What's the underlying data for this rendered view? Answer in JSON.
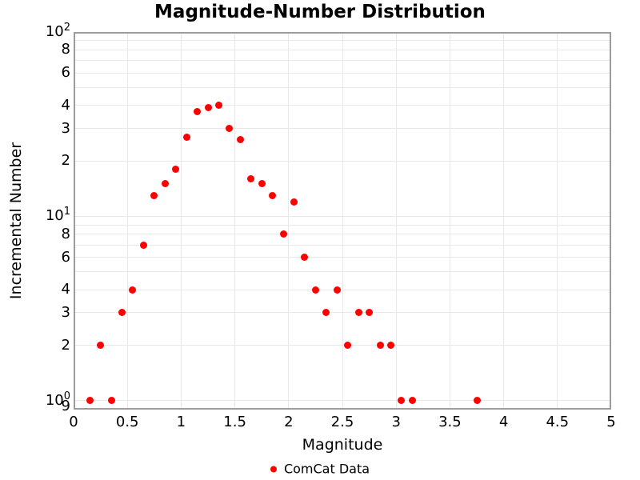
{
  "chart_data": {
    "type": "scatter",
    "title": "Magnitude-Number Distribution",
    "xlabel": "Magnitude",
    "ylabel": "Incremental Number",
    "xlim": [
      0,
      5
    ],
    "ylim": [
      0.9,
      100
    ],
    "yscale": "log",
    "grid": true,
    "legend_position": "bottom-center",
    "marker": {
      "color": "#ff0000",
      "size": 9,
      "shape": "circle"
    },
    "series": [
      {
        "name": "ComCat Data",
        "x": [
          0.15,
          0.25,
          0.35,
          0.45,
          0.55,
          0.65,
          0.75,
          0.85,
          0.95,
          1.05,
          1.15,
          1.25,
          1.35,
          1.45,
          1.55,
          1.65,
          1.75,
          1.85,
          1.95,
          2.05,
          2.15,
          2.25,
          2.35,
          2.45,
          2.55,
          2.65,
          2.75,
          2.85,
          2.95,
          3.05,
          3.15,
          3.75
        ],
        "y": [
          1,
          2,
          1,
          3,
          4,
          7,
          13,
          15,
          18,
          27,
          37,
          39,
          40,
          30,
          26,
          16,
          15,
          13,
          8,
          12,
          6,
          4,
          3,
          4,
          2,
          3,
          3,
          2,
          2,
          1,
          1,
          1
        ]
      }
    ],
    "xticks": [
      {
        "v": 0,
        "label": "0"
      },
      {
        "v": 0.5,
        "label": "0.5"
      },
      {
        "v": 1,
        "label": "1"
      },
      {
        "v": 1.5,
        "label": "1.5"
      },
      {
        "v": 2,
        "label": "2"
      },
      {
        "v": 2.5,
        "label": "2.5"
      },
      {
        "v": 3,
        "label": "3"
      },
      {
        "v": 3.5,
        "label": "3.5"
      },
      {
        "v": 4,
        "label": "4"
      },
      {
        "v": 4.5,
        "label": "4.5"
      },
      {
        "v": 5,
        "label": "5"
      }
    ],
    "yticks": [
      {
        "v": 100,
        "base": "10",
        "exp": "2"
      },
      {
        "v": 80,
        "base": "8"
      },
      {
        "v": 60,
        "base": "6"
      },
      {
        "v": 40,
        "base": "4"
      },
      {
        "v": 30,
        "base": "3"
      },
      {
        "v": 20,
        "base": "2"
      },
      {
        "v": 10,
        "base": "10",
        "exp": "1"
      },
      {
        "v": 8,
        "base": "8"
      },
      {
        "v": 6,
        "base": "6"
      },
      {
        "v": 4,
        "base": "4"
      },
      {
        "v": 3,
        "base": "3"
      },
      {
        "v": 2,
        "base": "2"
      },
      {
        "v": 1,
        "base": "10",
        "exp": "0"
      },
      {
        "v": 0.9,
        "base": "9",
        "dy": -4
      }
    ],
    "xgrid": [
      0.5,
      1,
      1.5,
      2,
      2.5,
      3,
      3.5,
      4,
      4.5
    ],
    "ygrid": [
      1,
      2,
      3,
      4,
      5,
      6,
      7,
      8,
      9,
      10,
      20,
      30,
      40,
      50,
      60,
      70,
      80,
      90
    ]
  },
  "colors": {
    "background": "#ffffff",
    "marker": "#ff0000",
    "gridline": "#e8e8e8",
    "axis_border": "#9c9c9c",
    "text": "#000000"
  }
}
